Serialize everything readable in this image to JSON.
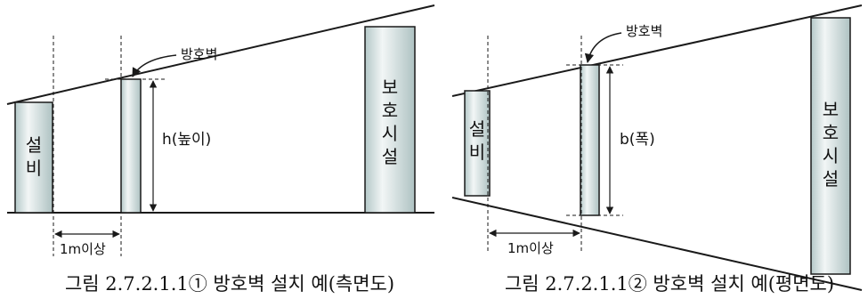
{
  "side_view": {
    "barrier_label": "방호벽",
    "equipment_label": [
      "설",
      "비"
    ],
    "facility_label": [
      "보",
      "호",
      "시",
      "설"
    ],
    "height_label": "h(높이)",
    "distance_label": "1m이상",
    "caption": "그림 2.7.2.1.1① 방호벽 설치 예(측면도)"
  },
  "plan_view": {
    "barrier_label": "방호벽",
    "equipment_label": [
      "설",
      "비"
    ],
    "facility_label": [
      "보",
      "호",
      "시",
      "설"
    ],
    "width_label": "b(폭)",
    "distance_label": "1m이상",
    "caption": "그림 2.7.2.1.1② 방호벽 설치 예(평면도)"
  },
  "colors": {
    "fill_light": "#eef3f3",
    "fill_mid": "#b9cccc",
    "stroke": "#1a1a1a"
  }
}
